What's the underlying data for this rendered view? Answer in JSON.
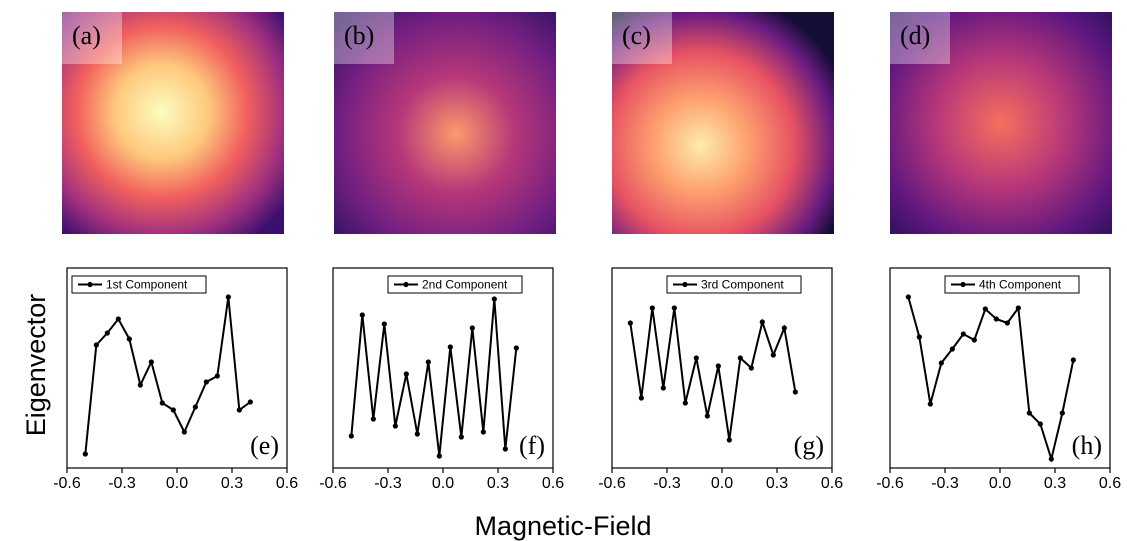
{
  "images": [
    {
      "label": "(a)"
    },
    {
      "label": "(b)"
    },
    {
      "label": "(c)"
    },
    {
      "label": "(d)"
    }
  ],
  "figure": {
    "xlabel": "Magnetic-Field",
    "ylabel": "Eigenvector"
  },
  "chart_data": [
    {
      "type": "line",
      "annotation": "(e)",
      "legend": "upper left",
      "x": [
        -0.5,
        -0.44,
        -0.38,
        -0.32,
        -0.26,
        -0.2,
        -0.14,
        -0.08,
        -0.02,
        0.04,
        0.1,
        0.16,
        0.22,
        0.28,
        0.34,
        0.4
      ],
      "series": [
        {
          "name": "1st Component",
          "color": "#000000",
          "values": [
            0.07,
            0.615,
            0.675,
            0.745,
            0.645,
            0.415,
            0.53,
            0.325,
            0.29,
            0.18,
            0.305,
            0.43,
            0.46,
            0.855,
            0.29,
            0.33
          ]
        }
      ],
      "xlim": [
        -0.6,
        0.6
      ],
      "xticks": [
        -0.6,
        -0.3,
        {
          "value": 0,
          "label": "0.0"
        },
        0.3,
        0.6
      ],
      "ylim": [
        0,
        1
      ]
    },
    {
      "type": "line",
      "annotation": "(f)",
      "legend": "upper center",
      "x": [
        -0.5,
        -0.44,
        -0.38,
        -0.32,
        -0.26,
        -0.2,
        -0.14,
        -0.08,
        -0.02,
        0.04,
        0.1,
        0.16,
        0.22,
        0.28,
        0.34,
        0.4
      ],
      "series": [
        {
          "name": "2nd Component",
          "color": "#000000",
          "values": [
            0.16,
            0.765,
            0.245,
            0.72,
            0.21,
            0.47,
            0.17,
            0.53,
            0.06,
            0.605,
            0.155,
            0.7,
            0.18,
            0.845,
            0.095,
            0.6
          ]
        }
      ],
      "xlim": [
        -0.6,
        0.6
      ],
      "xticks": [
        -0.6,
        -0.3,
        {
          "value": 0,
          "label": "0.0"
        },
        0.3,
        0.6
      ],
      "ylim": [
        0,
        1
      ]
    },
    {
      "type": "line",
      "annotation": "(g)",
      "legend": "upper center",
      "x": [
        -0.5,
        -0.44,
        -0.38,
        -0.32,
        -0.26,
        -0.2,
        -0.14,
        -0.08,
        -0.02,
        0.04,
        0.1,
        0.16,
        0.22,
        0.28,
        0.34,
        0.4
      ],
      "series": [
        {
          "name": "3rd Component",
          "color": "#000000",
          "values": [
            0.725,
            0.35,
            0.8,
            0.4,
            0.8,
            0.325,
            0.55,
            0.26,
            0.51,
            0.14,
            0.55,
            0.5,
            0.73,
            0.565,
            0.7,
            0.38
          ]
        }
      ],
      "xlim": [
        -0.6,
        0.6
      ],
      "xticks": [
        -0.6,
        -0.3,
        {
          "value": 0,
          "label": "0.0"
        },
        0.3,
        0.6
      ],
      "ylim": [
        0,
        1
      ]
    },
    {
      "type": "line",
      "annotation": "(h)",
      "legend": "upper center",
      "x": [
        -0.5,
        -0.44,
        -0.38,
        -0.32,
        -0.26,
        -0.2,
        -0.14,
        -0.08,
        -0.02,
        0.04,
        0.1,
        0.16,
        0.22,
        0.28,
        0.34,
        0.4
      ],
      "series": [
        {
          "name": "4th Component",
          "color": "#000000",
          "values": [
            0.855,
            0.655,
            0.32,
            0.525,
            0.595,
            0.67,
            0.64,
            0.795,
            0.745,
            0.725,
            0.8,
            0.275,
            0.22,
            0.045,
            0.275,
            0.54
          ]
        }
      ],
      "xlim": [
        -0.6,
        0.6
      ],
      "xticks": [
        -0.6,
        -0.3,
        {
          "value": 0,
          "label": "0.0"
        },
        0.3,
        0.6
      ],
      "ylim": [
        0,
        1
      ]
    }
  ]
}
